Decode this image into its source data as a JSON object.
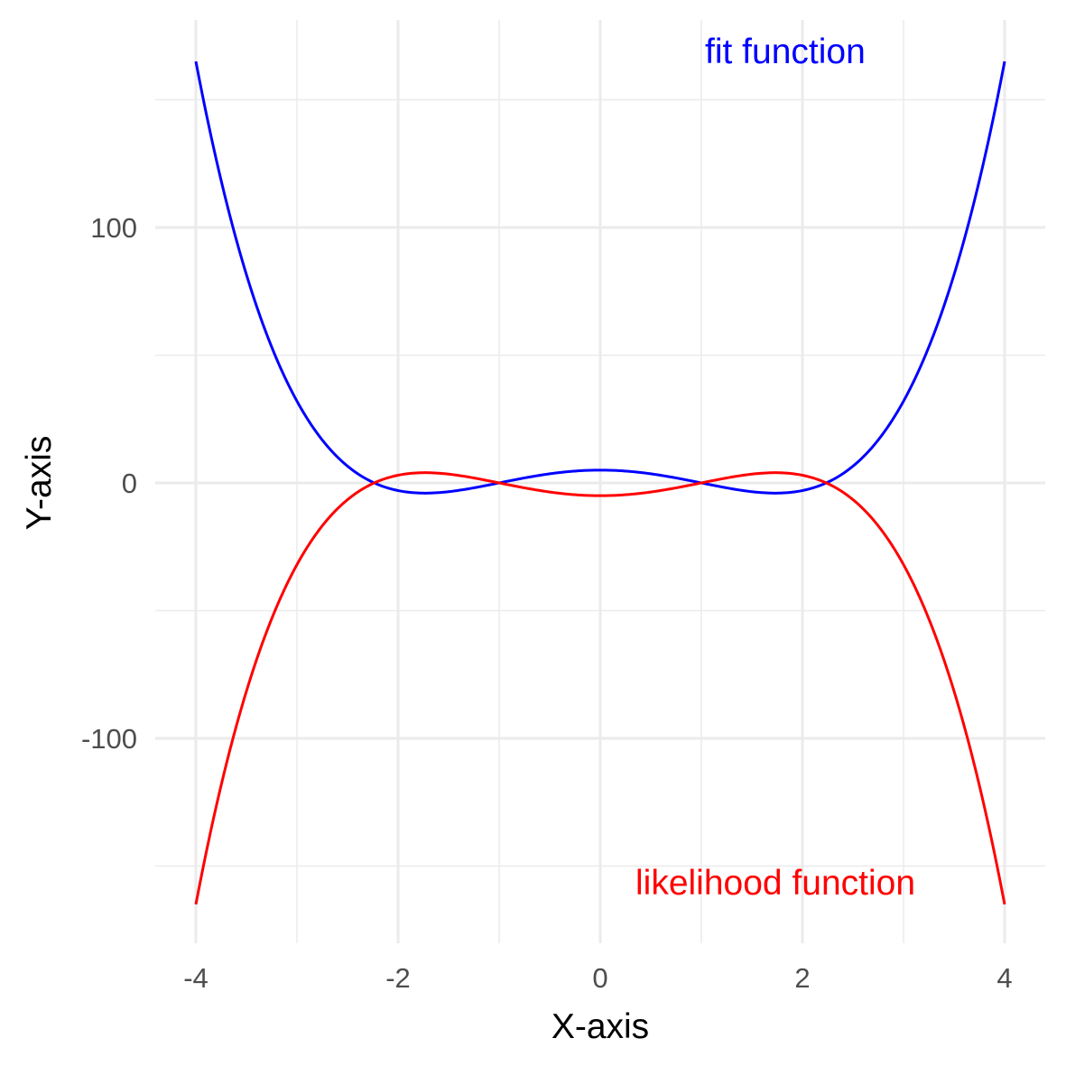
{
  "chart_data": {
    "type": "line",
    "title": "",
    "xlabel": "X-axis",
    "ylabel": "Y-axis",
    "xlim": [
      -4,
      4
    ],
    "ylim": [
      -180,
      180
    ],
    "x_ticks": [
      -4,
      -2,
      0,
      2,
      4
    ],
    "x_tick_labels": [
      "-4",
      "-2",
      "0",
      "2",
      "4"
    ],
    "y_ticks": [
      -100,
      0,
      100
    ],
    "y_tick_labels": [
      "-100",
      "0",
      "100"
    ],
    "grid": true,
    "legend": "none",
    "series": [
      {
        "name": "fit function",
        "color": "#0000ff",
        "formula": "x^4 - 6x^2 + 5",
        "x": [
          -4,
          -3.5,
          -3,
          -2.5,
          -2.236,
          -2,
          -1.732,
          -1.5,
          -1,
          -0.5,
          0,
          0.5,
          1,
          1.5,
          1.732,
          2,
          2.236,
          2.5,
          3,
          3.5,
          4
        ],
        "y": [
          165,
          81.6,
          32,
          6.6,
          0,
          -3,
          -4,
          -3.4,
          0,
          3.6,
          5,
          3.6,
          0,
          -3.4,
          -4,
          -3,
          0,
          6.6,
          32,
          81.6,
          165
        ]
      },
      {
        "name": "likelihood function",
        "color": "#ff0000",
        "formula": "-(x^4 - 6x^2 + 5)",
        "x": [
          -4,
          -3.5,
          -3,
          -2.5,
          -2.236,
          -2,
          -1.732,
          -1.5,
          -1,
          -0.5,
          0,
          0.5,
          1,
          1.5,
          1.732,
          2,
          2.236,
          2.5,
          3,
          3.5,
          4
        ],
        "y": [
          -165,
          -81.6,
          -32,
          -6.6,
          0,
          3,
          4,
          3.4,
          0,
          -3.6,
          -5,
          -3.6,
          0,
          3.4,
          4,
          3,
          0,
          -6.6,
          -32,
          -81.6,
          -165
        ]
      }
    ],
    "annotations": [
      {
        "text": "fit function",
        "x": 1.0,
        "y": 168,
        "color": "#0000ff"
      },
      {
        "text": "likelihood function",
        "x": 0.35,
        "y": -157,
        "color": "#ff0000"
      }
    ]
  }
}
